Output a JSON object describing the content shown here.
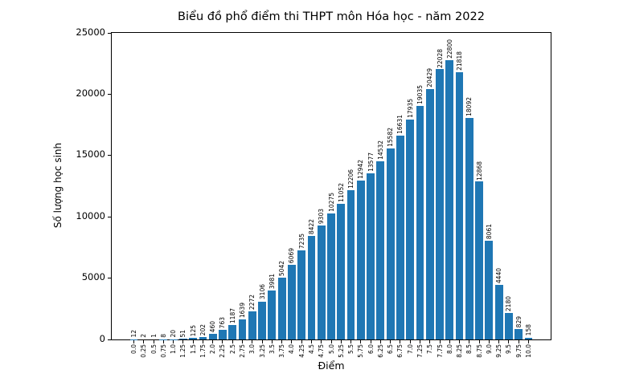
{
  "figure": {
    "background": "#ffffff",
    "text_color": "#000000"
  },
  "chart_data": {
    "type": "bar",
    "title": "Biểu đồ phổ điểm thi THPT môn Hóa học - năm 2022",
    "xlabel": "Điểm",
    "ylabel": "Số lượng học sinh",
    "categories": [
      "0.0",
      "0.25",
      "0.5",
      "0.75",
      "1.0",
      "1.25",
      "1.5",
      "1.75",
      "2.0",
      "2.25",
      "2.5",
      "2.75",
      "3.0",
      "3.25",
      "3.5",
      "3.75",
      "4.0",
      "4.25",
      "4.5",
      "4.75",
      "5.0",
      "5.25",
      "5.5",
      "5.75",
      "6.0",
      "6.25",
      "6.5",
      "6.75",
      "7.0",
      "7.25",
      "7.5",
      "7.75",
      "8.0",
      "8.25",
      "8.5",
      "8.75",
      "9.0",
      "9.25",
      "9.5",
      "9.75",
      "10.0"
    ],
    "values": [
      12,
      2,
      1,
      8,
      20,
      51,
      125,
      202,
      460,
      763,
      1187,
      1639,
      2272,
      3106,
      3981,
      5042,
      6069,
      7235,
      8422,
      9303,
      10275,
      11052,
      12206,
      12942,
      13577,
      14532,
      15582,
      16631,
      17935,
      19035,
      20429,
      22028,
      22800,
      21818,
      18092,
      12868,
      8061,
      4440,
      2180,
      829,
      158
    ],
    "bar_value_labels_shown": true,
    "ylim": [
      0,
      25000
    ],
    "y_ticks": [
      0,
      5000,
      10000,
      15000,
      20000,
      25000
    ],
    "bar_color": "#1f77b4",
    "axis_color": "#000000",
    "grid": false,
    "legend": "none"
  }
}
